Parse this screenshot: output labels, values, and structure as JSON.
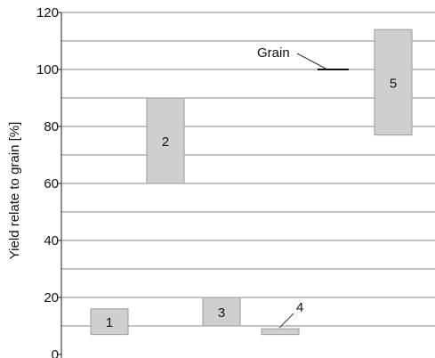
{
  "chart_data": {
    "type": "bar",
    "title": "",
    "xlabel": "",
    "ylabel": "Yield relate to grain [%]",
    "ylim": [
      0,
      120
    ],
    "yticks": [
      0,
      20,
      40,
      60,
      80,
      100,
      120
    ],
    "grid": true,
    "gridlines": [
      10,
      20,
      30,
      40,
      50,
      60,
      70,
      80,
      90,
      100,
      110,
      120
    ],
    "series": [
      {
        "label": "1",
        "low": 7,
        "high": 16
      },
      {
        "label": "2",
        "low": 60,
        "high": 90
      },
      {
        "label": "3",
        "low": 10,
        "high": 20
      },
      {
        "label": "4",
        "low": 7,
        "high": 9
      },
      {
        "label": "5",
        "low": 77,
        "high": 114
      }
    ],
    "reference": {
      "label": "Grain",
      "value": 100
    },
    "annotations": [
      {
        "text": "4",
        "points_to": "4"
      },
      {
        "text": "Grain",
        "points_to": "Grain"
      }
    ]
  }
}
